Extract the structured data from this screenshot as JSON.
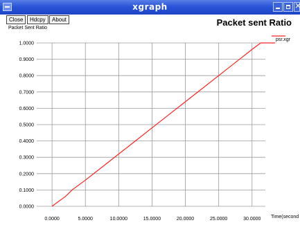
{
  "window": {
    "title": "xgraph"
  },
  "buttons": {
    "close": "Close",
    "hdcpy": "Hdcpy",
    "about": "About"
  },
  "colors": {
    "titlebar": "#2a55d8",
    "series": "#ff2222",
    "grid": "#9a9a9a"
  },
  "icons": {
    "window_menu": "window-menu-icon",
    "minimize": "minimize-icon",
    "maximize": "maximize-icon",
    "close": "close-icon"
  },
  "chart_data": {
    "type": "line",
    "title": "Packet sent Ratio",
    "ylabel": "Packet Sent Ratio",
    "xlabel": "Time(second",
    "xlim": [
      -2.3,
      32
    ],
    "ylim": [
      0,
      1
    ],
    "x_ticks": [
      0,
      5,
      10,
      15,
      20,
      25,
      30
    ],
    "x_tick_labels": [
      "0.0000",
      "5.0000",
      "10.0000",
      "15.0000",
      "20.0000",
      "25.0000",
      "30.0000"
    ],
    "y_ticks": [
      0,
      0.1,
      0.2,
      0.3,
      0.4,
      0.5,
      0.6,
      0.7,
      0.8,
      0.9,
      1.0
    ],
    "y_tick_labels": [
      "0.0000",
      "0.1000",
      "0.2000",
      "0.3000",
      "0.4000",
      "0.5000",
      "0.6000",
      "0.7000",
      "0.8000",
      "0.9000",
      "1.0000"
    ],
    "grid": true,
    "legend_position": "top-right",
    "series": [
      {
        "name": "psr.xgr",
        "x": [
          0,
          1,
          2,
          3,
          5,
          7.5,
          10,
          12.5,
          15,
          17.5,
          20,
          22.5,
          25,
          27.5,
          30,
          31.3,
          33.5
        ],
        "y": [
          0,
          0.03,
          0.06,
          0.1,
          0.16,
          0.24,
          0.32,
          0.4,
          0.48,
          0.56,
          0.64,
          0.72,
          0.8,
          0.88,
          0.96,
          1.0,
          1.0
        ]
      }
    ]
  }
}
